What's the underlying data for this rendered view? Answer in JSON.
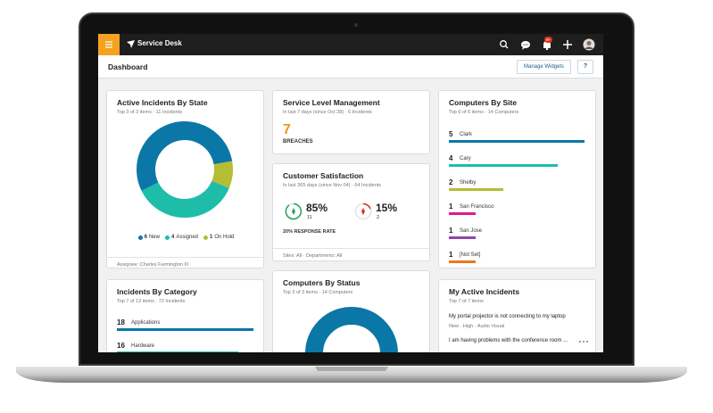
{
  "header": {
    "app_title": "Service Desk",
    "notification_badge": "9+"
  },
  "toolbar": {
    "title": "Dashboard",
    "manage_button": "Manage Widgets",
    "help_button": "?"
  },
  "widgets": {
    "incidents_by_state": {
      "title": "Active Incidents By State",
      "subtitle": "Top 3 of 3 items  ·  11 Incidents",
      "chart": {
        "type": "donut",
        "categories": [
          "New",
          "Assigned",
          "On Hold"
        ],
        "values": [
          6,
          4,
          1
        ],
        "colors": [
          "#0b77a7",
          "#1dbdaa",
          "#b5bd34"
        ]
      },
      "footer": "Assignee: Charles Farmington III"
    },
    "service_level": {
      "title": "Service Level Management",
      "subtitle": "In last 7 days (since Oct 28)  ·  6 Incidents",
      "value": 7,
      "label": "BREACHES"
    },
    "customer_satisfaction": {
      "title": "Customer Satisfaction",
      "subtitle": "In last 365 days (since Nov 04)  ·  64 Incidents",
      "positive": {
        "percent": "85%",
        "count": 11
      },
      "negative": {
        "percent": "15%",
        "count": 2
      },
      "response_rate": "20% RESPONSE RATE",
      "footer": "Sites: All  ·  Departments: All"
    },
    "computers_by_status": {
      "title": "Computers By Status",
      "subtitle": "Top 3 of 3 items  ·  14 Computers"
    },
    "incidents_by_category": {
      "title": "Incidents By Category",
      "subtitle": "Top 7 of 13 items  ·  72 Incidents",
      "chart": {
        "type": "bar",
        "categories": [
          "Applications",
          "Hardware"
        ],
        "values": [
          18,
          16
        ],
        "colors": [
          "#0b77a7",
          "#1dbdaa"
        ]
      }
    },
    "computers_by_site": {
      "title": "Computers By Site",
      "subtitle": "Top 6 of 6 items  ·  14 Computers",
      "chart": {
        "type": "bar",
        "categories": [
          "Clark",
          "Cary",
          "Shelby",
          "San Francisco",
          "San Jose",
          "[Not Set]"
        ],
        "values": [
          5,
          4,
          2,
          1,
          1,
          1
        ],
        "colors": [
          "#0b77a7",
          "#1dbdaa",
          "#b5bd34",
          "#e3198f",
          "#8e44ad",
          "#f0761f"
        ]
      }
    },
    "my_incidents": {
      "title": "My Active Incidents",
      "subtitle": "Top 7 of 7 items",
      "items": [
        {
          "title": "My portal projector is not connecting to my laptop",
          "meta": "New  ·  High  ·  Audio Visual"
        },
        {
          "title": "I am having problems with the conference room ..."
        }
      ]
    }
  }
}
